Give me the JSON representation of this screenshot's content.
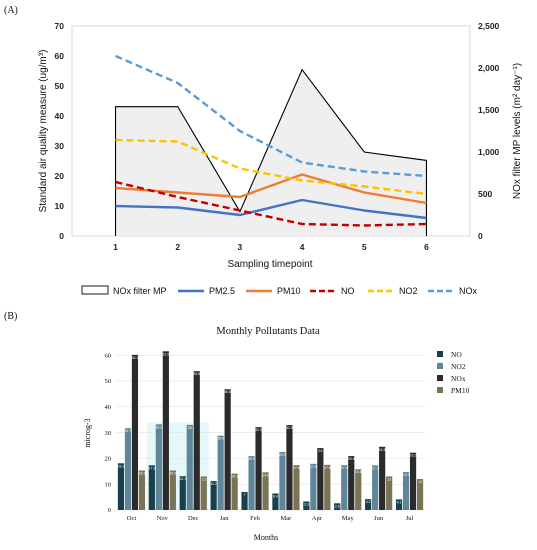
{
  "chart_data": [
    {
      "panel_label": "(A)",
      "type": "line",
      "xlabel": "Sampling timepoint",
      "ylabel": "Standard air quality measure (ug/m³)",
      "y2label": "NOx filter MP levels (m² day⁻¹)",
      "x": [
        1,
        2,
        3,
        4,
        5,
        6
      ],
      "xlim": [
        0.3,
        6.7
      ],
      "ylim": [
        0,
        70
      ],
      "yticks": [
        0,
        10,
        20,
        30,
        40,
        50,
        60,
        70
      ],
      "y2lim": [
        0,
        2500
      ],
      "y2ticks": [
        0,
        500,
        1000,
        1500,
        2000,
        2500
      ],
      "y2ticklabels": [
        "0",
        "500",
        "1,000",
        "1,500",
        "2,000",
        "2,500"
      ],
      "grid": false,
      "legend_position": "bottom",
      "series": [
        {
          "name": "NOx filter MP",
          "axis": "right",
          "style": "area",
          "color": "#000000",
          "fill": "#efefef",
          "values": [
            1540,
            1540,
            290,
            1980,
            1000,
            900
          ]
        },
        {
          "name": "PM2.5",
          "axis": "left",
          "style": "solid",
          "color": "#4472c4",
          "values": [
            10,
            9.5,
            7,
            12,
            8.5,
            6
          ]
        },
        {
          "name": "PM10",
          "axis": "left",
          "style": "solid",
          "color": "#ed7d31",
          "values": [
            16,
            14.5,
            13,
            20.5,
            14.5,
            11
          ]
        },
        {
          "name": "NO",
          "axis": "left",
          "style": "dashed",
          "color": "#c00000",
          "values": [
            18,
            13,
            8.5,
            4,
            3.5,
            4
          ]
        },
        {
          "name": "NO2",
          "axis": "left",
          "style": "dashed",
          "color": "#ffc000",
          "values": [
            32,
            31.5,
            22.5,
            18.5,
            16.5,
            14
          ]
        },
        {
          "name": "NOx",
          "axis": "left",
          "style": "dashed",
          "color": "#5b9bd5",
          "values": [
            60,
            51,
            35,
            24.5,
            21.5,
            20
          ]
        }
      ]
    },
    {
      "panel_label": "(B)",
      "type": "bar",
      "title": "Monthly Pollutants Data",
      "xlabel": "Months",
      "ylabel": "microg-3",
      "categories": [
        "Oct",
        "Nov",
        "Dec",
        "Jan",
        "Feb",
        "Mar",
        "Apr",
        "May",
        "Jun",
        "Jul"
      ],
      "ylim": [
        0,
        62
      ],
      "yticks": [
        0,
        10,
        20,
        30,
        40,
        50,
        60
      ],
      "legend_position": "right",
      "highlight_months": [
        "Nov",
        "Dec"
      ],
      "series": [
        {
          "name": "NO",
          "color": "#17404e",
          "values": [
            18.1,
            17.3,
            13.1,
            11.2,
            7.0,
            6.4,
            3.3,
            2.6,
            4.2,
            4.1
          ]
        },
        {
          "name": "NO2",
          "color": "#5f8698",
          "values": [
            31.7,
            33.2,
            33.0,
            28.8,
            20.9,
            22.5,
            17.9,
            17.4,
            17.3,
            14.7
          ]
        },
        {
          "name": "NOx",
          "color": "#2b2b2b",
          "values": [
            60.1,
            61.5,
            53.8,
            46.8,
            32.1,
            32.9,
            24.0,
            20.9,
            24.5,
            22.2
          ]
        },
        {
          "name": "PM10",
          "color": "#7a7456",
          "values": [
            15.3,
            15.3,
            13.0,
            14.1,
            14.6,
            17.4,
            17.5,
            15.8,
            13.0,
            12.0
          ]
        }
      ]
    }
  ]
}
